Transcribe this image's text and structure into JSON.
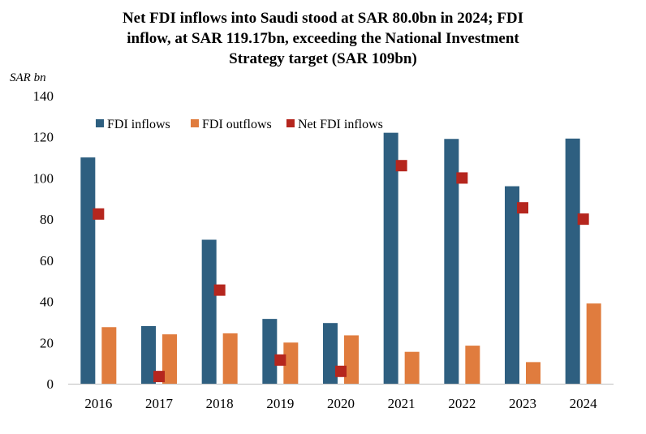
{
  "chart_data": {
    "type": "bar",
    "title": "Net FDI inflows into Saudi stood at SAR 80.0bn in 2024; FDI inflow, at SAR 119.17bn, exceeding the National Investment Strategy target (SAR 109bn)",
    "title_lines": [
      "Net FDI inflows into Saudi stood at SAR 80.0bn in 2024; FDI",
      "inflow, at SAR 119.17bn, exceeding the National Investment",
      "Strategy target (SAR 109bn)"
    ],
    "ylabel": "SAR bn",
    "xlabel": "",
    "ylim": [
      0,
      140
    ],
    "yticks": [
      "0",
      "20",
      "40",
      "60",
      "80",
      "100",
      "120",
      "140"
    ],
    "grid": false,
    "legend_position": "top-left",
    "categories": [
      "2016",
      "2017",
      "2018",
      "2019",
      "2020",
      "2021",
      "2022",
      "2023",
      "2024"
    ],
    "series": [
      {
        "name": "FDI inflows",
        "kind": "bar",
        "color": "#2e5f80",
        "values": [
          110,
          28,
          70,
          31.5,
          29.5,
          122,
          119,
          96,
          119.17
        ]
      },
      {
        "name": "FDI outflows",
        "kind": "bar",
        "color": "#e07c3e",
        "values": [
          27.5,
          24,
          24.5,
          20,
          23.5,
          15.5,
          18.5,
          10.5,
          39
        ]
      },
      {
        "name": "Net FDI inflows",
        "kind": "marker",
        "color": "#b5261e",
        "values": [
          82.5,
          3.5,
          45.5,
          11.5,
          6,
          106,
          100,
          85.5,
          80
        ]
      }
    ]
  }
}
